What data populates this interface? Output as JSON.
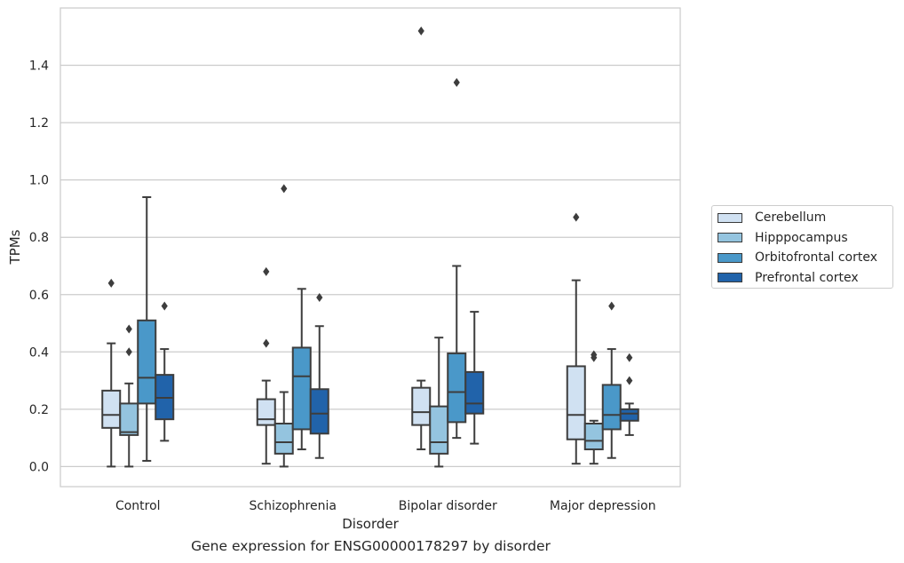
{
  "chart_data": {
    "type": "box",
    "xlabel": "Disorder",
    "ylabel": "TPMs",
    "ylim": [
      -0.07,
      1.6
    ],
    "yticks": [
      0.0,
      0.2,
      0.4,
      0.6,
      0.8,
      1.0,
      1.2,
      1.4
    ],
    "ytick_labels": [
      "0.0",
      "0.2",
      "0.4",
      "0.6",
      "0.8",
      "1.0",
      "1.2",
      "1.4"
    ],
    "grid": "horizontal",
    "legend_position": "right",
    "categories": [
      "Control",
      "Schizophrenia",
      "Bipolar disorder",
      "Major depression"
    ],
    "series": [
      {
        "name": "Cerebellum",
        "color": "#d0e1f2",
        "boxes": [
          {
            "whislo": 0.0,
            "q1": 0.135,
            "med": 0.18,
            "q3": 0.265,
            "whishi": 0.43,
            "fliers": [
              0.64
            ]
          },
          {
            "whislo": 0.01,
            "q1": 0.145,
            "med": 0.165,
            "q3": 0.235,
            "whishi": 0.3,
            "fliers": [
              0.43,
              0.68
            ]
          },
          {
            "whislo": 0.06,
            "q1": 0.145,
            "med": 0.19,
            "q3": 0.275,
            "whishi": 0.3,
            "fliers": [
              1.52
            ]
          },
          {
            "whislo": 0.01,
            "q1": 0.095,
            "med": 0.18,
            "q3": 0.35,
            "whishi": 0.65,
            "fliers": [
              0.87
            ]
          }
        ]
      },
      {
        "name": "Hipppocampus",
        "color": "#94c4df",
        "boxes": [
          {
            "whislo": 0.0,
            "q1": 0.11,
            "med": 0.12,
            "q3": 0.22,
            "whishi": 0.29,
            "fliers": [
              0.4,
              0.48
            ]
          },
          {
            "whislo": 0.0,
            "q1": 0.045,
            "med": 0.085,
            "q3": 0.15,
            "whishi": 0.26,
            "fliers": [
              0.97
            ]
          },
          {
            "whislo": 0.0,
            "q1": 0.045,
            "med": 0.085,
            "q3": 0.21,
            "whishi": 0.45,
            "fliers": []
          },
          {
            "whislo": 0.01,
            "q1": 0.06,
            "med": 0.09,
            "q3": 0.15,
            "whishi": 0.16,
            "fliers": [
              0.38,
              0.39
            ]
          }
        ]
      },
      {
        "name": "Orbitofrontal cortex",
        "color": "#4a98c9",
        "boxes": [
          {
            "whislo": 0.02,
            "q1": 0.22,
            "med": 0.31,
            "q3": 0.51,
            "whishi": 0.94,
            "fliers": []
          },
          {
            "whislo": 0.06,
            "q1": 0.13,
            "med": 0.315,
            "q3": 0.415,
            "whishi": 0.62,
            "fliers": []
          },
          {
            "whislo": 0.1,
            "q1": 0.155,
            "med": 0.26,
            "q3": 0.395,
            "whishi": 0.7,
            "fliers": [
              1.34
            ]
          },
          {
            "whislo": 0.03,
            "q1": 0.13,
            "med": 0.18,
            "q3": 0.285,
            "whishi": 0.41,
            "fliers": [
              0.56
            ]
          }
        ]
      },
      {
        "name": "Prefrontal cortex",
        "color": "#2163aa",
        "boxes": [
          {
            "whislo": 0.09,
            "q1": 0.165,
            "med": 0.24,
            "q3": 0.32,
            "whishi": 0.41,
            "fliers": [
              0.56
            ]
          },
          {
            "whislo": 0.03,
            "q1": 0.115,
            "med": 0.185,
            "q3": 0.27,
            "whishi": 0.49,
            "fliers": [
              0.59
            ]
          },
          {
            "whislo": 0.08,
            "q1": 0.185,
            "med": 0.22,
            "q3": 0.33,
            "whishi": 0.54,
            "fliers": []
          },
          {
            "whislo": 0.11,
            "q1": 0.16,
            "med": 0.185,
            "q3": 0.2,
            "whishi": 0.22,
            "fliers": [
              0.3,
              0.38
            ]
          }
        ]
      }
    ]
  },
  "caption": "Gene expression for ENSG00000178297 by disorder"
}
